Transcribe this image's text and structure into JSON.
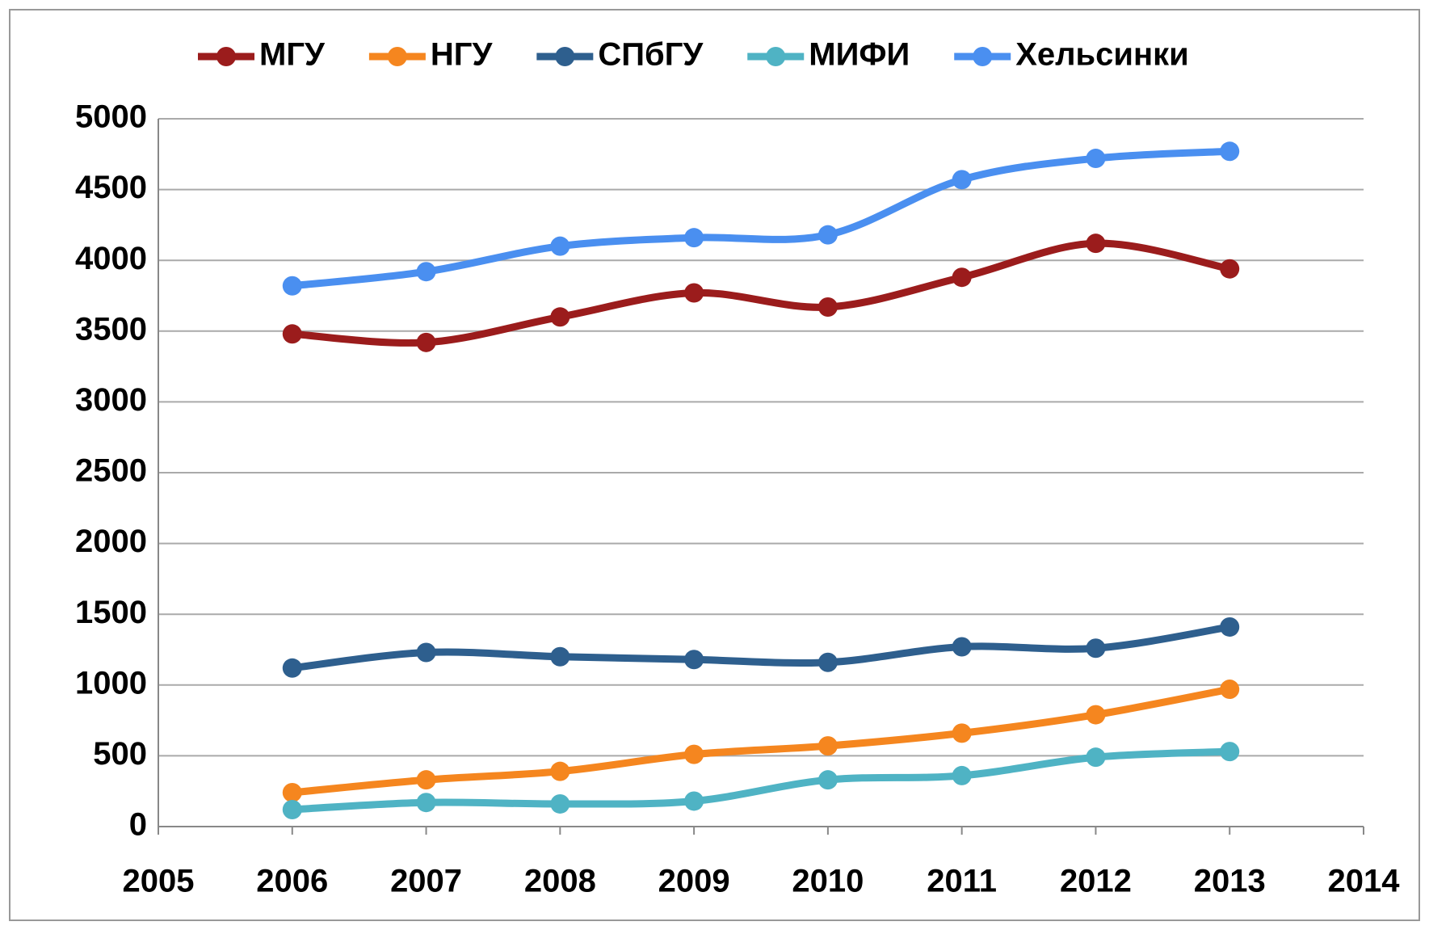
{
  "chart_data": {
    "type": "line",
    "x": [
      2006,
      2007,
      2008,
      2009,
      2010,
      2011,
      2012,
      2013
    ],
    "series": [
      {
        "name": "МГУ",
        "color": "#9b1c1c",
        "values": [
          3480,
          3420,
          3600,
          3770,
          3670,
          3880,
          4120,
          3940
        ]
      },
      {
        "name": "НГУ",
        "color": "#f5861f",
        "values": [
          240,
          330,
          390,
          510,
          570,
          660,
          790,
          970
        ]
      },
      {
        "name": "СПбГУ",
        "color": "#2e5f8e",
        "values": [
          1120,
          1230,
          1200,
          1180,
          1160,
          1270,
          1260,
          1410
        ]
      },
      {
        "name": "МИФИ",
        "color": "#4fb3c4",
        "values": [
          120,
          170,
          160,
          180,
          330,
          360,
          490,
          530
        ]
      },
      {
        "name": "Хельсинки",
        "color": "#4a8ff0",
        "values": [
          3820,
          3920,
          4100,
          4160,
          4180,
          4570,
          4720,
          4770
        ]
      }
    ],
    "xlim": [
      2005,
      2014
    ],
    "xticks": [
      2005,
      2006,
      2007,
      2008,
      2009,
      2010,
      2011,
      2012,
      2013,
      2014
    ],
    "ylim": [
      0,
      5000
    ],
    "yticks": [
      0,
      500,
      1000,
      1500,
      2000,
      2500,
      3000,
      3500,
      4000,
      4500,
      5000
    ],
    "grid": true,
    "legend": "top"
  }
}
